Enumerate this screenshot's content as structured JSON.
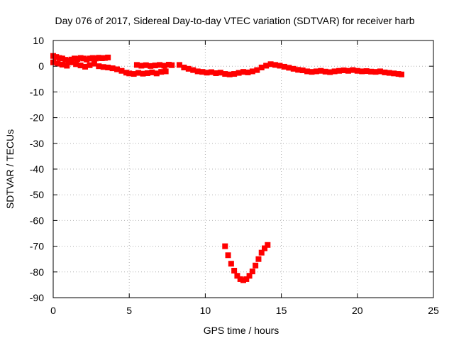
{
  "chart_data": {
    "type": "scatter",
    "title": "Day 076 of 2017, Sidereal Day-to-day VTEC variation (SDTVAR) for receiver harb",
    "xlabel": "GPS time / hours",
    "ylabel": "SDTVAR / TECUs",
    "xlim": [
      0,
      25
    ],
    "ylim": [
      -90,
      10
    ],
    "xticks": [
      0,
      5,
      10,
      15,
      20,
      25
    ],
    "yticks": [
      10,
      0,
      -10,
      -20,
      -30,
      -40,
      -50,
      -60,
      -70,
      -80,
      -90
    ],
    "grid": true,
    "color": "#ff0000",
    "series": [
      {
        "name": "SDTVAR",
        "x": [
          0.0,
          0.2,
          0.4,
          0.6,
          0.8,
          1.0,
          1.2,
          1.4,
          1.6,
          1.8,
          2.0,
          2.2,
          2.4,
          2.6,
          2.8,
          3.0,
          3.2,
          3.4,
          3.6,
          0.0,
          0.3,
          0.6,
          0.9,
          1.2,
          1.5,
          1.8,
          2.1,
          2.4,
          2.7,
          3.0,
          3.3,
          3.6,
          3.9,
          4.2,
          4.5,
          4.8,
          5.0,
          5.3,
          5.6,
          5.9,
          6.2,
          6.5,
          6.8,
          7.1,
          7.4,
          5.5,
          5.8,
          6.1,
          6.4,
          6.7,
          7.0,
          7.3,
          7.6,
          7.8,
          8.3,
          8.6,
          8.9,
          9.2,
          9.5,
          9.8,
          10.1,
          10.4,
          10.7,
          11.0,
          11.3,
          11.6,
          11.9,
          12.2,
          12.5,
          12.8,
          13.1,
          13.4,
          13.7,
          14.0,
          14.3,
          14.6,
          14.9,
          15.2,
          15.5,
          15.8,
          16.1,
          16.4,
          16.7,
          17.0,
          17.3,
          17.6,
          17.9,
          18.2,
          18.5,
          18.8,
          19.1,
          19.4,
          19.7,
          20.0,
          20.3,
          20.6,
          20.9,
          21.2,
          21.5,
          21.8,
          22.1,
          22.4,
          22.7,
          22.9,
          11.3,
          11.5,
          11.7,
          11.9,
          12.1,
          12.3,
          12.5,
          12.7,
          12.9,
          13.1,
          13.3,
          13.5,
          13.7,
          13.9,
          14.1
        ],
        "y": [
          4.0,
          3.6,
          3.2,
          3.0,
          2.5,
          2.2,
          2.6,
          3.0,
          2.8,
          3.2,
          3.0,
          2.6,
          3.0,
          3.2,
          3.0,
          3.3,
          3.1,
          3.2,
          3.4,
          1.5,
          1.0,
          0.6,
          0.2,
          1.5,
          0.8,
          0.3,
          -0.2,
          0.4,
          1.0,
          0.0,
          -0.3,
          -0.5,
          -0.8,
          -1.2,
          -1.8,
          -2.5,
          -2.8,
          -3.0,
          -2.6,
          -2.9,
          -2.7,
          -2.4,
          -2.8,
          -2.2,
          -2.0,
          0.5,
          0.2,
          0.4,
          0.1,
          0.3,
          0.5,
          0.2,
          0.6,
          0.4,
          0.5,
          -0.5,
          -1.0,
          -1.5,
          -2.0,
          -2.2,
          -2.5,
          -2.3,
          -2.7,
          -2.5,
          -3.0,
          -3.2,
          -3.0,
          -2.6,
          -2.2,
          -2.4,
          -2.0,
          -1.5,
          -0.5,
          0.2,
          0.8,
          0.5,
          0.2,
          -0.2,
          -0.6,
          -1.0,
          -1.4,
          -1.6,
          -2.0,
          -2.2,
          -2.0,
          -1.8,
          -2.1,
          -2.3,
          -2.0,
          -1.8,
          -1.6,
          -1.8,
          -1.5,
          -1.8,
          -2.0,
          -1.9,
          -2.1,
          -2.2,
          -2.0,
          -2.4,
          -2.6,
          -2.8,
          -3.0,
          -3.2,
          -70.0,
          -73.5,
          -76.8,
          -79.5,
          -81.5,
          -82.8,
          -83.2,
          -82.8,
          -81.5,
          -79.8,
          -77.5,
          -75.0,
          -72.5,
          -70.8,
          -69.5
        ]
      }
    ]
  }
}
